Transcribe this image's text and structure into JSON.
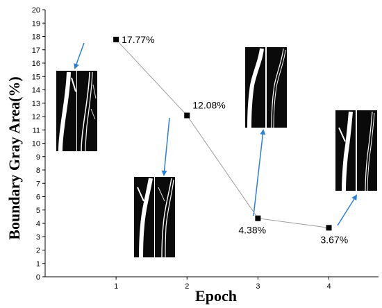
{
  "chart_data": {
    "type": "line",
    "title": "",
    "xlabel": "Epoch",
    "ylabel": "Boundary Gray Area(%)",
    "x": [
      1,
      2,
      3,
      4
    ],
    "xlim": [
      0,
      4.7
    ],
    "ylim": [
      0,
      20
    ],
    "y_ticks": [
      0,
      1,
      2,
      3,
      4,
      5,
      6,
      7,
      8,
      9,
      10,
      11,
      12,
      13,
      14,
      15,
      16,
      17,
      18,
      19,
      20
    ],
    "x_ticks": [
      1,
      2,
      3,
      4
    ],
    "grid": false,
    "series": [
      {
        "values": [
          17.77,
          12.08,
          4.38,
          3.67
        ],
        "data_labels": [
          "17.77%",
          "12.08%",
          "4.38%",
          "3.67%"
        ],
        "line_color": "#9e9e9e",
        "marker_color": "#000000"
      }
    ],
    "annotation_arrow_color": "#2f7fd1",
    "inset_images": [
      {
        "epoch": 1,
        "description": "vessel segmentation pair"
      },
      {
        "epoch": 2,
        "description": "vessel segmentation pair"
      },
      {
        "epoch": 3,
        "description": "vessel segmentation pair"
      },
      {
        "epoch": 4,
        "description": "vessel segmentation pair"
      }
    ]
  }
}
